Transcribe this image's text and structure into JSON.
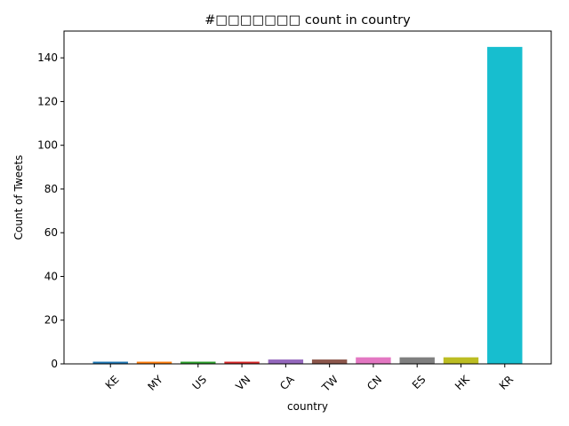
{
  "chart_data": {
    "type": "bar",
    "title": "#□□□□□□□ count in country",
    "xlabel": "country",
    "ylabel": "Count of Tweets",
    "categories": [
      "KE",
      "MY",
      "US",
      "VN",
      "CA",
      "TW",
      "CN",
      "ES",
      "HK",
      "KR"
    ],
    "values": [
      1,
      1,
      1,
      1,
      2,
      2,
      3,
      3,
      3,
      145
    ],
    "colors": [
      "#1f77b4",
      "#ff7f0e",
      "#2ca02c",
      "#d62728",
      "#9467bd",
      "#8c564b",
      "#e377c2",
      "#7f7f7f",
      "#bcbd22",
      "#17becf"
    ],
    "ylim": [
      0,
      152.25
    ],
    "yticks": [
      0,
      20,
      40,
      60,
      80,
      100,
      120,
      140
    ],
    "grid": false,
    "legend": "none"
  }
}
